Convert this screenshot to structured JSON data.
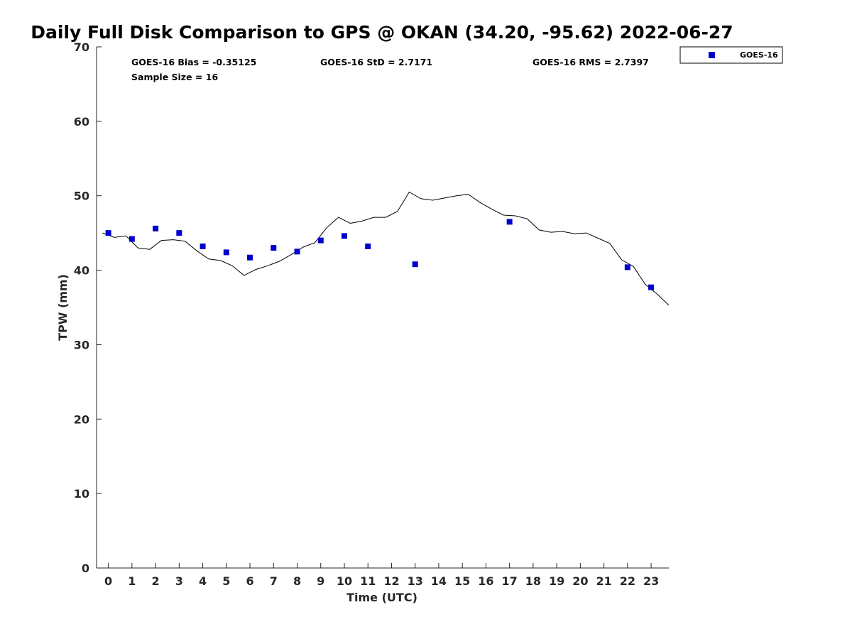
{
  "chart_data": {
    "type": "scatter",
    "title": "Daily Full Disk Comparison to GPS @ OKAN (34.20, -95.62) 2022-06-27",
    "xlabel": "Time (UTC)",
    "ylabel": "TPW (mm)",
    "xlim": [
      -0.5,
      23.75
    ],
    "ylim": [
      0,
      70
    ],
    "x_ticks": [
      0,
      1,
      2,
      3,
      4,
      5,
      6,
      7,
      8,
      9,
      10,
      11,
      12,
      13,
      14,
      15,
      16,
      17,
      18,
      19,
      20,
      21,
      22,
      23
    ],
    "y_ticks": [
      0,
      10,
      20,
      30,
      40,
      50,
      60,
      70
    ],
    "grid": false,
    "legend_position": "top-right, outside plot",
    "stats": {
      "bias": "GOES-16 Bias = -0.35125",
      "std": "GOES-16 StD = 2.7171",
      "rms": "GOES-16 RMS = 2.7397",
      "sample": "Sample Size = 16"
    },
    "series": [
      {
        "name": "GOES-16",
        "kind": "scatter",
        "marker": "square",
        "color": "#0000cc",
        "x": [
          0,
          1,
          2,
          3,
          4,
          5,
          6,
          7,
          8,
          9,
          10,
          11,
          13,
          17,
          22,
          23
        ],
        "y": [
          45.0,
          44.2,
          45.6,
          45.0,
          43.2,
          42.4,
          41.7,
          43.0,
          42.5,
          44.0,
          44.6,
          43.2,
          40.8,
          46.5,
          40.4,
          37.7
        ]
      },
      {
        "kind": "line",
        "color": "#000000",
        "x": [
          -0.25,
          0.25,
          0.75,
          1.25,
          1.75,
          2.25,
          2.75,
          3.25,
          3.75,
          4.25,
          4.75,
          5.25,
          5.75,
          6.25,
          6.75,
          7.25,
          7.75,
          8.25,
          8.75,
          9.25,
          9.75,
          10.25,
          10.75,
          11.25,
          11.75,
          12.25,
          12.75,
          13.25,
          13.75,
          14.25,
          14.75,
          15.25,
          15.75,
          16.25,
          16.75,
          17.25,
          17.75,
          18.25,
          18.75,
          19.25,
          19.75,
          20.25,
          20.75,
          21.25,
          21.75,
          22.25,
          22.75,
          23.25,
          23.75
        ],
        "y": [
          45.0,
          44.4,
          44.6,
          43.0,
          42.8,
          44.0,
          44.1,
          43.9,
          42.6,
          41.5,
          41.3,
          40.6,
          39.3,
          40.1,
          40.6,
          41.2,
          42.1,
          43.1,
          43.7,
          45.7,
          47.1,
          46.3,
          46.6,
          47.1,
          47.1,
          47.9,
          50.5,
          49.6,
          49.4,
          49.7,
          50.0,
          50.2,
          49.1,
          48.2,
          47.4,
          47.3,
          46.9,
          45.4,
          45.1,
          45.2,
          44.9,
          45.0,
          44.3,
          43.6,
          41.4,
          40.5,
          38.1,
          36.8,
          35.3
        ]
      }
    ]
  }
}
